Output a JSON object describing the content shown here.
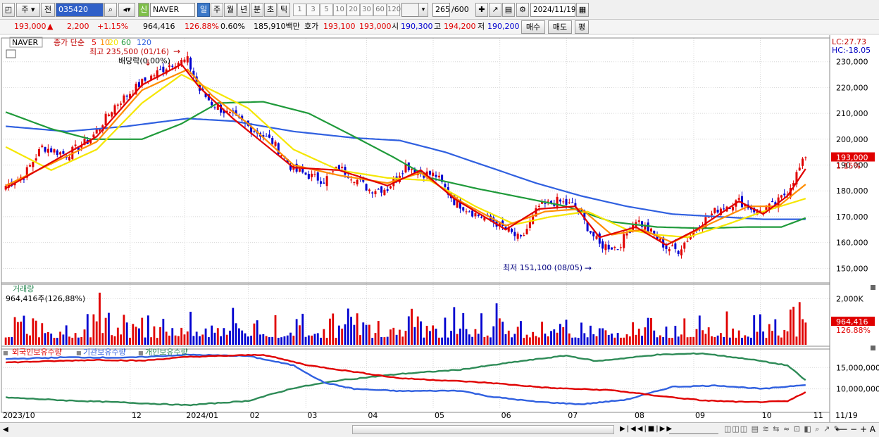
{
  "toolbar": {
    "market_label": "주",
    "all_label": "전",
    "code": "035420",
    "new_badge": "신",
    "stock_name": "NAVER",
    "periods": [
      "일",
      "주",
      "월",
      "년",
      "분",
      "초",
      "틱"
    ],
    "selected_period": "일",
    "intervals": [
      "1",
      "3",
      "5",
      "10",
      "20",
      "30",
      "60",
      "120"
    ],
    "count": "265",
    "count_max": "/600",
    "date": "2024/11/19"
  },
  "quote": {
    "price": "193,000",
    "change_arrow": "▲",
    "change": "2,200",
    "change_pct": "+1.15%",
    "volume": "964,416",
    "volume_ratio": "126.88%",
    "turnover": "0.60%",
    "amount": "185,910백만",
    "ask_label": "호가",
    "ask": "193,100",
    "bid": "193,000",
    "open_label": "시",
    "open": "190,300",
    "high_label": "고",
    "high": "194,200",
    "low_label": "저",
    "low": "190,200",
    "buy_label": "매수",
    "sell_label": "매도",
    "eval_label": "평"
  },
  "colors": {
    "up": "#e00000",
    "down": "#0000d0",
    "ma5": "#e00000",
    "ma10": "#ff8c00",
    "ma20": "#f5e600",
    "ma60": "#1f9a3a",
    "ma120": "#3060e0",
    "foreign": "#e00000",
    "institution": "#3060e0",
    "individual": "#2e8b57"
  },
  "chart_data": [
    {
      "type": "candlestick",
      "title": "NAVER",
      "legend_prefix": "종가 단순",
      "ma_periods": [
        "5",
        "10",
        "20",
        "60",
        "120"
      ],
      "corner_labels": {
        "lc": "LC:27.73",
        "hc": "HC:-18.05"
      },
      "annotations": {
        "high": "최고 235,500 (01/16)",
        "low": "최저 151,100 (08/05)",
        "dividend": "배당락(0.00%)"
      },
      "last_price_label": "193,000",
      "last_pct_label": "1.15%",
      "y_ticks": [
        230000,
        220000,
        210000,
        200000,
        190000,
        180000,
        170000,
        160000,
        150000
      ],
      "y_tick_labels": [
        "230,000",
        "220,000",
        "210,000",
        "200,000",
        "190,000",
        "180,000",
        "170,000",
        "160,000",
        "150,000"
      ],
      "ylim": [
        146000,
        237000
      ],
      "x_month_labels": [
        "2023/10",
        "12",
        "2024/01",
        "02",
        "03",
        "04",
        "05",
        "06",
        "07",
        "08",
        "09",
        "10",
        "11",
        "11/19"
      ],
      "n_days": 265,
      "close_anchors": [
        [
          0,
          182000
        ],
        [
          6,
          186000
        ],
        [
          12,
          197000
        ],
        [
          20,
          194000
        ],
        [
          28,
          200000
        ],
        [
          36,
          213000
        ],
        [
          45,
          222000
        ],
        [
          55,
          229500
        ],
        [
          60,
          230500
        ],
        [
          64,
          219000
        ],
        [
          68,
          214000
        ],
        [
          73,
          210000
        ],
        [
          80,
          205000
        ],
        [
          88,
          199000
        ],
        [
          95,
          188000
        ],
        [
          100,
          186000
        ],
        [
          105,
          184000
        ],
        [
          110,
          189000
        ],
        [
          115,
          185000
        ],
        [
          120,
          180500
        ],
        [
          126,
          181000
        ],
        [
          132,
          190000
        ],
        [
          137,
          187000
        ],
        [
          142,
          186000
        ],
        [
          148,
          176000
        ],
        [
          155,
          171000
        ],
        [
          162,
          167500
        ],
        [
          170,
          161000
        ],
        [
          176,
          174000
        ],
        [
          182,
          176000
        ],
        [
          188,
          174000
        ],
        [
          192,
          166000
        ],
        [
          196,
          159000
        ],
        [
          202,
          158000
        ],
        [
          208,
          169000
        ],
        [
          213,
          164000
        ],
        [
          218,
          158000
        ],
        [
          222,
          157000
        ],
        [
          228,
          166000
        ],
        [
          235,
          173000
        ],
        [
          242,
          176000
        ],
        [
          248,
          172000
        ],
        [
          254,
          174500
        ],
        [
          258,
          180000
        ],
        [
          264,
          193000
        ]
      ],
      "ma_anchors": {
        "ma5": [
          [
            0,
            181000
          ],
          [
            30,
            201000
          ],
          [
            45,
            221000
          ],
          [
            58,
            229000
          ],
          [
            64,
            220000
          ],
          [
            75,
            208000
          ],
          [
            95,
            189000
          ],
          [
            110,
            188000
          ],
          [
            126,
            182000
          ],
          [
            137,
            188000
          ],
          [
            148,
            177000
          ],
          [
            165,
            165000
          ],
          [
            176,
            173000
          ],
          [
            188,
            174000
          ],
          [
            196,
            162000
          ],
          [
            208,
            166000
          ],
          [
            218,
            159000
          ],
          [
            228,
            165000
          ],
          [
            242,
            176000
          ],
          [
            250,
            171000
          ],
          [
            258,
            178000
          ],
          [
            264,
            188500
          ]
        ],
        "ma10": [
          [
            0,
            182000
          ],
          [
            30,
            199000
          ],
          [
            45,
            219000
          ],
          [
            60,
            227000
          ],
          [
            68,
            217000
          ],
          [
            80,
            206000
          ],
          [
            95,
            190000
          ],
          [
            110,
            186000
          ],
          [
            126,
            183000
          ],
          [
            137,
            187000
          ],
          [
            150,
            176000
          ],
          [
            165,
            166500
          ],
          [
            178,
            172000
          ],
          [
            190,
            173000
          ],
          [
            200,
            163000
          ],
          [
            210,
            165000
          ],
          [
            220,
            160000
          ],
          [
            232,
            167000
          ],
          [
            245,
            174000
          ],
          [
            255,
            174000
          ],
          [
            264,
            182500
          ]
        ],
        "ma20": [
          [
            0,
            197000
          ],
          [
            15,
            188000
          ],
          [
            30,
            196000
          ],
          [
            45,
            214000
          ],
          [
            58,
            225000
          ],
          [
            68,
            219000
          ],
          [
            80,
            212000
          ],
          [
            95,
            196000
          ],
          [
            110,
            188000
          ],
          [
            126,
            185000
          ],
          [
            140,
            184000
          ],
          [
            155,
            174000
          ],
          [
            168,
            167000
          ],
          [
            180,
            170000
          ],
          [
            192,
            172000
          ],
          [
            205,
            165000
          ],
          [
            215,
            163000
          ],
          [
            225,
            162000
          ],
          [
            238,
            167000
          ],
          [
            250,
            172000
          ],
          [
            264,
            177000
          ]
        ],
        "ma60": [
          [
            0,
            210500
          ],
          [
            15,
            204000
          ],
          [
            28,
            200000
          ],
          [
            45,
            200000
          ],
          [
            58,
            206000
          ],
          [
            70,
            214000
          ],
          [
            85,
            214500
          ],
          [
            100,
            210000
          ],
          [
            115,
            201000
          ],
          [
            128,
            193000
          ],
          [
            140,
            185000
          ],
          [
            155,
            181000
          ],
          [
            170,
            177500
          ],
          [
            185,
            174000
          ],
          [
            200,
            168000
          ],
          [
            215,
            166000
          ],
          [
            230,
            165500
          ],
          [
            245,
            166000
          ],
          [
            256,
            166000
          ],
          [
            264,
            169500
          ]
        ],
        "ma120": [
          [
            0,
            205000
          ],
          [
            20,
            203000
          ],
          [
            40,
            205000
          ],
          [
            60,
            208000
          ],
          [
            75,
            207000
          ],
          [
            95,
            203000
          ],
          [
            115,
            200500
          ],
          [
            130,
            199500
          ],
          [
            145,
            195000
          ],
          [
            160,
            189000
          ],
          [
            175,
            183000
          ],
          [
            190,
            178000
          ],
          [
            205,
            174000
          ],
          [
            220,
            171000
          ],
          [
            235,
            170000
          ],
          [
            250,
            169000
          ],
          [
            264,
            169000
          ]
        ]
      }
    },
    {
      "type": "bar",
      "title": "거래량",
      "current_label": "964,416주(126,88%)",
      "y_tick_labels": [
        "2,000K"
      ],
      "last_value_label": "964,416",
      "last_pct_label": "126.88%",
      "ylim": [
        0,
        2500000
      ],
      "last_value": 964416
    },
    {
      "type": "line",
      "title": "보유수량",
      "series_names": [
        "외국인보유수량",
        "기관보유수량",
        "개인보유수량"
      ],
      "y_ticks": [
        15000000,
        10000000
      ],
      "y_tick_labels": [
        "15,000,000",
        "10,000,000"
      ],
      "ylim": [
        5500000,
        19000000
      ],
      "series": [
        {
          "name": "외국인보유수량",
          "anchors": [
            [
              0,
              16200000
            ],
            [
              30,
              16800000
            ],
            [
              45,
              16600000
            ],
            [
              60,
              17500000
            ],
            [
              85,
              18000000
            ],
            [
              100,
              15500000
            ],
            [
              115,
              14000000
            ],
            [
              130,
              12500000
            ],
            [
              150,
              11800000
            ],
            [
              160,
              11400000
            ],
            [
              180,
              10200000
            ],
            [
              200,
              9700000
            ],
            [
              215,
              8400000
            ],
            [
              230,
              7300000
            ],
            [
              245,
              6900000
            ],
            [
              258,
              7100000
            ],
            [
              264,
              9200000
            ]
          ]
        },
        {
          "name": "기관보유수량",
          "anchors": [
            [
              0,
              17000000
            ],
            [
              20,
              17400000
            ],
            [
              40,
              17300000
            ],
            [
              60,
              18000000
            ],
            [
              80,
              17700000
            ],
            [
              95,
              15500000
            ],
            [
              105,
              11500000
            ],
            [
              115,
              10000000
            ],
            [
              130,
              9500000
            ],
            [
              150,
              9600000
            ],
            [
              160,
              8200000
            ],
            [
              175,
              7000000
            ],
            [
              190,
              6400000
            ],
            [
              205,
              7500000
            ],
            [
              220,
              10500000
            ],
            [
              235,
              10800000
            ],
            [
              250,
              10000000
            ],
            [
              264,
              11000000
            ]
          ]
        },
        {
          "name": "개인보유수량",
          "anchors": [
            [
              0,
              8000000
            ],
            [
              20,
              7300000
            ],
            [
              40,
              6800000
            ],
            [
              60,
              6200000
            ],
            [
              80,
              7200000
            ],
            [
              95,
              10200000
            ],
            [
              110,
              12000000
            ],
            [
              130,
              13500000
            ],
            [
              150,
              14500000
            ],
            [
              170,
              16500000
            ],
            [
              185,
              17800000
            ],
            [
              195,
              16500000
            ],
            [
              215,
              18000000
            ],
            [
              230,
              18300000
            ],
            [
              245,
              17000000
            ],
            [
              258,
              15500000
            ],
            [
              264,
              12000000
            ]
          ]
        }
      ]
    }
  ]
}
